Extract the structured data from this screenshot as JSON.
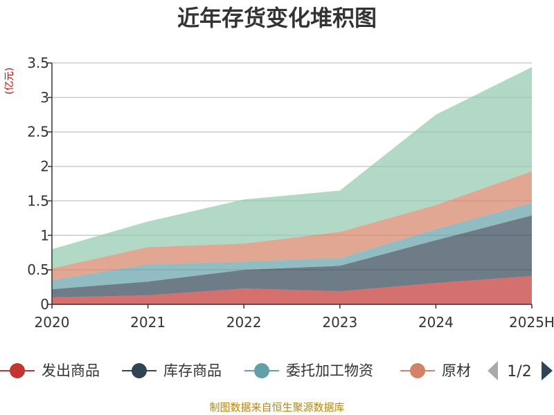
{
  "chart_data": {
    "type": "area",
    "stacked": true,
    "title": "近年存货变化堆积图",
    "unit": "(亿元)",
    "categories": [
      "2020",
      "2021",
      "2022",
      "2023",
      "2024",
      "2025H"
    ],
    "ylim": [
      0,
      3.5
    ],
    "yticks": [
      "0",
      "0.5",
      "1",
      "1.5",
      "2",
      "2.5",
      "3",
      "3.5"
    ],
    "grid": true,
    "series": [
      {
        "name": "发出商品",
        "color": "#c23531",
        "values": [
          0.1,
          0.13,
          0.23,
          0.19,
          0.31,
          0.41
        ]
      },
      {
        "name": "库存商品",
        "color": "#2f4554",
        "values": [
          0.12,
          0.2,
          0.27,
          0.37,
          0.62,
          0.88
        ]
      },
      {
        "name": "委托加工物资",
        "color": "#61a0a8",
        "values": [
          0.13,
          0.25,
          0.12,
          0.11,
          0.16,
          0.18
        ]
      },
      {
        "name": "原材料",
        "color": "#d48265",
        "values": [
          0.17,
          0.25,
          0.26,
          0.38,
          0.35,
          0.46
        ]
      },
      {
        "name": "",
        "color": "#91c7ae",
        "values": [
          0.28,
          0.37,
          0.64,
          0.6,
          1.31,
          1.51
        ]
      }
    ],
    "legend": {
      "visible_items": [
        "发出商品",
        "库存商品",
        "委托加工物资",
        "原材"
      ],
      "page": "1/2",
      "placement": "bottom"
    }
  },
  "footer": {
    "source": "制图数据来自恒生聚源数据库"
  }
}
